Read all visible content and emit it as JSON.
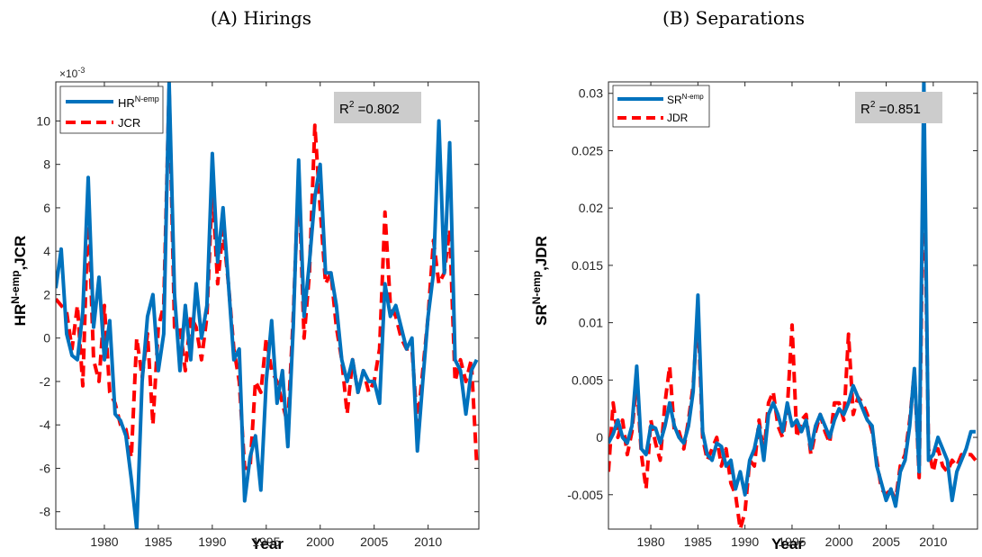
{
  "panels": [
    {
      "panel_title": "(A) Hirings",
      "ylabel_base": "HR",
      "ylabel_sup": "N-emp",
      "ylabel_tail": ",JCR",
      "xlabel": "Year",
      "exponent_label": "×10",
      "exponent_power": "-3",
      "r2_label": "R",
      "r2_power": "2",
      "r2_value": " =0.802",
      "legend": [
        {
          "base": "HR",
          "sup": "N-emp",
          "style": "solid"
        },
        {
          "base": "JCR",
          "sup": "",
          "style": "dashed"
        }
      ],
      "x_ticks": [
        "1980",
        "1985",
        "1990",
        "1995",
        "2000",
        "2005",
        "2010"
      ],
      "y_ticks": [
        "10",
        "8",
        "6",
        "4",
        "2",
        "0",
        "-2",
        "-4",
        "-6",
        "-8"
      ]
    },
    {
      "panel_title": "(B) Separations",
      "ylabel_base": "SR",
      "ylabel_sup": "N-emp",
      "ylabel_tail": ",JDR",
      "xlabel": "Year",
      "r2_label": "R",
      "r2_power": "2",
      "r2_value": " =0.851",
      "legend": [
        {
          "base": "SR",
          "sup": "N-emp",
          "style": "solid"
        },
        {
          "base": "JDR",
          "sup": "",
          "style": "dashed"
        }
      ],
      "x_ticks": [
        "1980",
        "1985",
        "1990",
        "1995",
        "2000",
        "2005",
        "2010"
      ],
      "y_ticks": [
        "0.03",
        "0.025",
        "0.02",
        "0.015",
        "0.01",
        "0.005",
        "0",
        "-0.005"
      ]
    }
  ],
  "colors": {
    "solid_line": "#0072BD",
    "dashed_line": "#FF0000",
    "r2_box": "#CCCCCC"
  },
  "chart_data": [
    {
      "type": "line",
      "title": "(A) Hirings",
      "xlabel": "Year",
      "ylabel": "HR^N-emp,JCR",
      "y_scale_note": "×10^-3",
      "xlim": [
        1975.5,
        2014.7
      ],
      "ylim": [
        -8.8,
        11.8
      ],
      "grid": false,
      "legend_position": "top-left",
      "annotation": "R^2 =0.802",
      "series": [
        {
          "name": "HR^N-emp",
          "x": [
            1975.5,
            1976,
            1976.5,
            1977,
            1977.5,
            1978,
            1978.5,
            1979,
            1979.5,
            1980,
            1980.5,
            1981,
            1981.5,
            1982,
            1982.5,
            1983,
            1983.5,
            1984,
            1984.5,
            1985,
            1985.5,
            1986,
            1986.5,
            1987,
            1987.5,
            1988,
            1988.5,
            1989,
            1989.5,
            1990,
            1990.5,
            1991,
            1991.5,
            1992,
            1992.5,
            1993,
            1993.5,
            1994,
            1994.5,
            1995,
            1995.5,
            1996,
            1996.5,
            1997,
            1997.5,
            1998,
            1998.5,
            1999,
            1999.5,
            2000,
            2000.5,
            2001,
            2001.5,
            2002,
            2002.5,
            2003,
            2003.5,
            2004,
            2004.5,
            2005,
            2005.5,
            2006,
            2006.5,
            2007,
            2007.5,
            2008,
            2008.5,
            2009,
            2009.5,
            2010,
            2010.5,
            2011,
            2011.5,
            2012,
            2012.5,
            2013,
            2013.5,
            2014,
            2014.5
          ],
          "values": [
            2.3,
            4.1,
            0.2,
            -0.8,
            -1.0,
            1.2,
            7.4,
            0.5,
            2.8,
            -1.0,
            0.8,
            -3.5,
            -3.8,
            -4.5,
            -6.5,
            -8.8,
            -2.0,
            1.0,
            2.0,
            -1.5,
            0.2,
            11.8,
            2.0,
            -1.5,
            1.5,
            -1.0,
            2.5,
            0.0,
            1.5,
            8.5,
            3.5,
            6.0,
            2.5,
            -1.0,
            -0.5,
            -7.5,
            -5.5,
            -4.5,
            -7.0,
            -2.0,
            0.8,
            -3.0,
            -1.5,
            -5.0,
            0.5,
            8.2,
            1.0,
            3.5,
            6.5,
            8.0,
            3.0,
            3.0,
            1.5,
            -1.0,
            -2.0,
            -1.0,
            -2.5,
            -1.5,
            -2.0,
            -2.0,
            -3.0,
            2.5,
            1.0,
            1.5,
            0.5,
            -0.5,
            0.0,
            -5.2,
            -2.0,
            1.0,
            3.0,
            10.0,
            3.0,
            9.0,
            -1.0,
            -1.5,
            -3.5,
            -1.5,
            -1.0
          ]
        },
        {
          "name": "JCR",
          "x": [
            1975.5,
            1976,
            1976.5,
            1977,
            1977.5,
            1978,
            1978.5,
            1979,
            1979.5,
            1980,
            1980.5,
            1981,
            1981.5,
            1982,
            1982.5,
            1983,
            1983.5,
            1984,
            1984.5,
            1985,
            1985.5,
            1986,
            1986.5,
            1987,
            1987.5,
            1988,
            1988.5,
            1989,
            1989.5,
            1990,
            1990.5,
            1991,
            1991.5,
            1992,
            1992.5,
            1993,
            1993.5,
            1994,
            1994.5,
            1995,
            1995.5,
            1996,
            1996.5,
            1997,
            1997.5,
            1998,
            1998.5,
            1999,
            1999.5,
            2000,
            2000.5,
            2001,
            2001.5,
            2002,
            2002.5,
            2003,
            2003.5,
            2004,
            2004.5,
            2005,
            2005.5,
            2006,
            2006.5,
            2007,
            2007.5,
            2008,
            2008.5,
            2009,
            2009.5,
            2010,
            2010.5,
            2011,
            2011.5,
            2012,
            2012.5,
            2013,
            2013.5,
            2014,
            2014.5
          ],
          "values": [
            1.8,
            1.5,
            1.2,
            -0.5,
            1.5,
            -2.2,
            6.0,
            -1.0,
            -2.0,
            1.5,
            -2.5,
            -3.0,
            -4.0,
            -4.2,
            -5.5,
            0.0,
            -1.8,
            0.2,
            -4.0,
            0.5,
            1.5,
            11.5,
            0.5,
            0.5,
            -1.5,
            1.0,
            0.5,
            -1.0,
            1.0,
            7.0,
            2.5,
            5.0,
            2.5,
            -0.5,
            -2.0,
            -6.0,
            -6.0,
            -2.0,
            -2.5,
            0.0,
            -1.5,
            -2.0,
            -3.0,
            -4.0,
            1.0,
            7.5,
            0.0,
            3.0,
            9.8,
            6.0,
            2.5,
            3.0,
            0.5,
            -1.0,
            -3.5,
            -1.0,
            -2.5,
            -1.5,
            -2.5,
            -2.0,
            -0.5,
            5.8,
            1.5,
            1.0,
            0.0,
            -0.5,
            -0.5,
            -4.0,
            -1.5,
            1.0,
            4.5,
            2.5,
            3.0,
            5.0,
            -2.0,
            -1.0,
            -2.0,
            -1.0,
            -5.8
          ]
        }
      ]
    },
    {
      "type": "line",
      "title": "(B) Separations",
      "xlabel": "Year",
      "ylabel": "SR^N-emp,JDR",
      "xlim": [
        1975.5,
        2014.7
      ],
      "ylim": [
        -0.008,
        0.031
      ],
      "grid": false,
      "legend_position": "top-left",
      "annotation": "R^2 =0.851",
      "series": [
        {
          "name": "SR^N-emp",
          "x": [
            1975.5,
            1976,
            1976.5,
            1977,
            1977.5,
            1978,
            1978.5,
            1979,
            1979.5,
            1980,
            1980.5,
            1981,
            1981.5,
            1982,
            1982.5,
            1983,
            1983.5,
            1984,
            1984.5,
            1985,
            1985.5,
            1986,
            1986.5,
            1987,
            1987.5,
            1988,
            1988.5,
            1989,
            1989.5,
            1990,
            1990.5,
            1991,
            1991.5,
            1992,
            1992.5,
            1993,
            1993.5,
            1994,
            1994.5,
            1995,
            1995.5,
            1996,
            1996.5,
            1997,
            1997.5,
            1998,
            1998.5,
            1999,
            1999.5,
            2000,
            2000.5,
            2001,
            2001.5,
            2002,
            2002.5,
            2003,
            2003.5,
            2004,
            2004.5,
            2005,
            2005.5,
            2006,
            2006.5,
            2007,
            2007.5,
            2008,
            2008.5,
            2009,
            2009.5,
            2010,
            2010.5,
            2011,
            2011.5,
            2012,
            2012.5,
            2013,
            2013.5,
            2014,
            2014.5
          ],
          "values": [
            -0.0005,
            0.0003,
            0.0015,
            0.0,
            -0.0005,
            0.001,
            0.0062,
            -0.001,
            -0.0015,
            0.001,
            0.0008,
            -0.0005,
            0.001,
            0.003,
            0.001,
            0.0,
            -0.0005,
            0.001,
            0.004,
            0.0124,
            0.0005,
            -0.0015,
            -0.002,
            -0.0005,
            -0.0008,
            -0.0025,
            -0.002,
            -0.0045,
            -0.003,
            -0.005,
            -0.002,
            -0.001,
            0.001,
            -0.002,
            0.002,
            0.003,
            0.002,
            0.0005,
            0.003,
            0.001,
            0.0015,
            0.0005,
            0.0015,
            -0.001,
            0.001,
            0.002,
            0.001,
            0.0,
            0.0015,
            0.0025,
            0.002,
            0.003,
            0.0045,
            0.0035,
            0.0025,
            0.0015,
            0.001,
            -0.0025,
            -0.004,
            -0.0055,
            -0.0045,
            -0.006,
            -0.003,
            -0.002,
            0.001,
            0.006,
            -0.003,
            0.0312,
            -0.002,
            -0.0015,
            0.0,
            -0.001,
            -0.002,
            -0.0055,
            -0.003,
            -0.002,
            -0.001,
            0.0005,
            0.0005
          ]
        },
        {
          "name": "JDR",
          "x": [
            1975.5,
            1976,
            1976.5,
            1977,
            1977.5,
            1978,
            1978.5,
            1979,
            1979.5,
            1980,
            1980.5,
            1981,
            1981.5,
            1982,
            1982.5,
            1983,
            1983.5,
            1984,
            1984.5,
            1985,
            1985.5,
            1986,
            1986.5,
            1987,
            1987.5,
            1988,
            1988.5,
            1989,
            1989.5,
            1990,
            1990.5,
            1991,
            1991.5,
            1992,
            1992.5,
            1993,
            1993.5,
            1994,
            1994.5,
            1995,
            1995.5,
            1996,
            1996.5,
            1997,
            1997.5,
            1998,
            1998.5,
            1999,
            1999.5,
            2000,
            2000.5,
            2001,
            2001.5,
            2002,
            2002.5,
            2003,
            2003.5,
            2004,
            2004.5,
            2005,
            2005.5,
            2006,
            2006.5,
            2007,
            2007.5,
            2008,
            2008.5,
            2009,
            2009.5,
            2010,
            2010.5,
            2011,
            2011.5,
            2012,
            2012.5,
            2013,
            2013.5,
            2014,
            2014.5
          ],
          "values": [
            -0.003,
            0.003,
            0.0,
            0.0015,
            -0.0015,
            0.0005,
            0.005,
            -0.0015,
            -0.0045,
            0.0015,
            -0.0005,
            -0.002,
            0.003,
            0.0062,
            0.0005,
            0.0005,
            -0.001,
            0.0015,
            0.0045,
            0.011,
            0.0,
            -0.002,
            -0.001,
            0.0,
            -0.0025,
            -0.001,
            -0.004,
            -0.005,
            -0.008,
            -0.0065,
            -0.002,
            -0.0025,
            0.0015,
            -0.0015,
            0.003,
            0.004,
            0.001,
            0.0,
            0.0025,
            0.0098,
            0.0,
            0.0015,
            0.002,
            -0.0015,
            0.0005,
            0.002,
            0.0005,
            -0.0005,
            0.003,
            0.003,
            0.0015,
            0.009,
            0.002,
            0.0035,
            0.003,
            0.002,
            0.0005,
            -0.002,
            -0.0045,
            -0.005,
            -0.0045,
            -0.0055,
            -0.0025,
            -0.0015,
            0.0015,
            0.0057,
            -0.0035,
            0.0262,
            -0.001,
            -0.003,
            -0.001,
            -0.0025,
            -0.003,
            -0.002,
            -0.0025,
            -0.0015,
            -0.0015,
            -0.0015,
            -0.002
          ]
        }
      ]
    }
  ]
}
